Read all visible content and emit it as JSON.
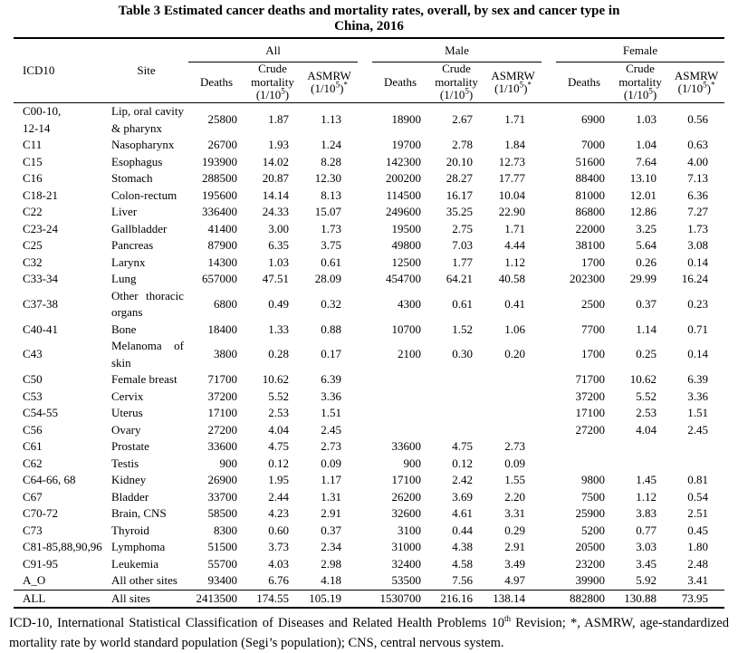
{
  "title": {
    "line1": "Table 3 Estimated cancer deaths and mortality rates, overall, by sex and cancer type in",
    "line2": "China, 2016"
  },
  "table": {
    "groups": [
      "All",
      "Male",
      "Female"
    ],
    "columns": {
      "icd10": "ICD10",
      "site": "Site",
      "deaths": "Deaths",
      "crude_l1": "Crude",
      "crude_l2": "mortality",
      "rate_paren_pre": "(1/10",
      "rate_sup": "5",
      "rate_paren_post": ")",
      "asmrw_l1": "ASMRW",
      "asmrw_star": "*"
    },
    "rows": [
      {
        "icd10": "C00-10,\n12-14",
        "site": "Lip, oral cavity & pharynx",
        "all": [
          "25800",
          "1.87",
          "1.13"
        ],
        "male": [
          "18900",
          "2.67",
          "1.71"
        ],
        "female": [
          "6900",
          "1.03",
          "0.56"
        ]
      },
      {
        "icd10": "C11",
        "site": "Nasopharynx",
        "all": [
          "26700",
          "1.93",
          "1.24"
        ],
        "male": [
          "19700",
          "2.78",
          "1.84"
        ],
        "female": [
          "7000",
          "1.04",
          "0.63"
        ]
      },
      {
        "icd10": "C15",
        "site": "Esophagus",
        "all": [
          "193900",
          "14.02",
          "8.28"
        ],
        "male": [
          "142300",
          "20.10",
          "12.73"
        ],
        "female": [
          "51600",
          "7.64",
          "4.00"
        ]
      },
      {
        "icd10": "C16",
        "site": "Stomach",
        "all": [
          "288500",
          "20.87",
          "12.30"
        ],
        "male": [
          "200200",
          "28.27",
          "17.77"
        ],
        "female": [
          "88400",
          "13.10",
          "7.13"
        ]
      },
      {
        "icd10": "C18-21",
        "site": "Colon-rectum",
        "all": [
          "195600",
          "14.14",
          "8.13"
        ],
        "male": [
          "114500",
          "16.17",
          "10.04"
        ],
        "female": [
          "81000",
          "12.01",
          "6.36"
        ]
      },
      {
        "icd10": "C22",
        "site": "Liver",
        "all": [
          "336400",
          "24.33",
          "15.07"
        ],
        "male": [
          "249600",
          "35.25",
          "22.90"
        ],
        "female": [
          "86800",
          "12.86",
          "7.27"
        ]
      },
      {
        "icd10": "C23-24",
        "site": "Gallbladder",
        "all": [
          "41400",
          "3.00",
          "1.73"
        ],
        "male": [
          "19500",
          "2.75",
          "1.71"
        ],
        "female": [
          "22000",
          "3.25",
          "1.73"
        ]
      },
      {
        "icd10": "C25",
        "site": "Pancreas",
        "all": [
          "87900",
          "6.35",
          "3.75"
        ],
        "male": [
          "49800",
          "7.03",
          "4.44"
        ],
        "female": [
          "38100",
          "5.64",
          "3.08"
        ]
      },
      {
        "icd10": "C32",
        "site": "Larynx",
        "all": [
          "14300",
          "1.03",
          "0.61"
        ],
        "male": [
          "12500",
          "1.77",
          "1.12"
        ],
        "female": [
          "1700",
          "0.26",
          "0.14"
        ]
      },
      {
        "icd10": "C33-34",
        "site": "Lung",
        "all": [
          "657000",
          "47.51",
          "28.09"
        ],
        "male": [
          "454700",
          "64.21",
          "40.58"
        ],
        "female": [
          "202300",
          "29.99",
          "16.24"
        ]
      },
      {
        "icd10": "C37-38",
        "site": "Other thoracic organs",
        "all": [
          "6800",
          "0.49",
          "0.32"
        ],
        "male": [
          "4300",
          "0.61",
          "0.41"
        ],
        "female": [
          "2500",
          "0.37",
          "0.23"
        ]
      },
      {
        "icd10": "C40-41",
        "site": "Bone",
        "all": [
          "18400",
          "1.33",
          "0.88"
        ],
        "male": [
          "10700",
          "1.52",
          "1.06"
        ],
        "female": [
          "7700",
          "1.14",
          "0.71"
        ]
      },
      {
        "icd10": "C43",
        "site": "Melanoma of skin",
        "all": [
          "3800",
          "0.28",
          "0.17"
        ],
        "male": [
          "2100",
          "0.30",
          "0.20"
        ],
        "female": [
          "1700",
          "0.25",
          "0.14"
        ]
      },
      {
        "icd10": "C50",
        "site": "Female breast",
        "all": [
          "71700",
          "10.62",
          "6.39"
        ],
        "male": [
          "",
          "",
          ""
        ],
        "female": [
          "71700",
          "10.62",
          "6.39"
        ]
      },
      {
        "icd10": "C53",
        "site": "Cervix",
        "all": [
          "37200",
          "5.52",
          "3.36"
        ],
        "male": [
          "",
          "",
          ""
        ],
        "female": [
          "37200",
          "5.52",
          "3.36"
        ]
      },
      {
        "icd10": "C54-55",
        "site": "Uterus",
        "all": [
          "17100",
          "2.53",
          "1.51"
        ],
        "male": [
          "",
          "",
          ""
        ],
        "female": [
          "17100",
          "2.53",
          "1.51"
        ]
      },
      {
        "icd10": "C56",
        "site": "Ovary",
        "all": [
          "27200",
          "4.04",
          "2.45"
        ],
        "male": [
          "",
          "",
          ""
        ],
        "female": [
          "27200",
          "4.04",
          "2.45"
        ]
      },
      {
        "icd10": "C61",
        "site": "Prostate",
        "all": [
          "33600",
          "4.75",
          "2.73"
        ],
        "male": [
          "33600",
          "4.75",
          "2.73"
        ],
        "female": [
          "",
          "",
          ""
        ]
      },
      {
        "icd10": "C62",
        "site": "Testis",
        "all": [
          "900",
          "0.12",
          "0.09"
        ],
        "male": [
          "900",
          "0.12",
          "0.09"
        ],
        "female": [
          "",
          "",
          ""
        ]
      },
      {
        "icd10": "C64-66, 68",
        "site": "Kidney",
        "all": [
          "26900",
          "1.95",
          "1.17"
        ],
        "male": [
          "17100",
          "2.42",
          "1.55"
        ],
        "female": [
          "9800",
          "1.45",
          "0.81"
        ]
      },
      {
        "icd10": "C67",
        "site": "Bladder",
        "all": [
          "33700",
          "2.44",
          "1.31"
        ],
        "male": [
          "26200",
          "3.69",
          "2.20"
        ],
        "female": [
          "7500",
          "1.12",
          "0.54"
        ]
      },
      {
        "icd10": "C70-72",
        "site": "Brain, CNS",
        "all": [
          "58500",
          "4.23",
          "2.91"
        ],
        "male": [
          "32600",
          "4.61",
          "3.31"
        ],
        "female": [
          "25900",
          "3.83",
          "2.51"
        ]
      },
      {
        "icd10": "C73",
        "site": "Thyroid",
        "all": [
          "8300",
          "0.60",
          "0.37"
        ],
        "male": [
          "3100",
          "0.44",
          "0.29"
        ],
        "female": [
          "5200",
          "0.77",
          "0.45"
        ]
      },
      {
        "icd10": "C81-85,88,90,96",
        "site": "Lymphoma",
        "all": [
          "51500",
          "3.73",
          "2.34"
        ],
        "male": [
          "31000",
          "4.38",
          "2.91"
        ],
        "female": [
          "20500",
          "3.03",
          "1.80"
        ]
      },
      {
        "icd10": "C91-95",
        "site": "Leukemia",
        "all": [
          "55700",
          "4.03",
          "2.98"
        ],
        "male": [
          "32400",
          "4.58",
          "3.49"
        ],
        "female": [
          "23200",
          "3.45",
          "2.48"
        ]
      },
      {
        "icd10": "A_O",
        "site": "All other sites",
        "all": [
          "93400",
          "6.76",
          "4.18"
        ],
        "male": [
          "53500",
          "7.56",
          "4.97"
        ],
        "female": [
          "39900",
          "5.92",
          "3.41"
        ]
      },
      {
        "icd10": "ALL",
        "site": "All sites",
        "all": [
          "2413500",
          "174.55",
          "105.19"
        ],
        "male": [
          "1530700",
          "216.16",
          "138.14"
        ],
        "female": [
          "882800",
          "130.88",
          "73.95"
        ],
        "total": true
      }
    ]
  },
  "footnote": {
    "pre": "ICD-10, International Statistical Classification of Diseases and Related Health Problems 10",
    "sup": "th",
    "post": " Revision; *, ASMRW, age-standardized mortality rate by world standard population (Segi’s population); CNS, central nervous system."
  }
}
